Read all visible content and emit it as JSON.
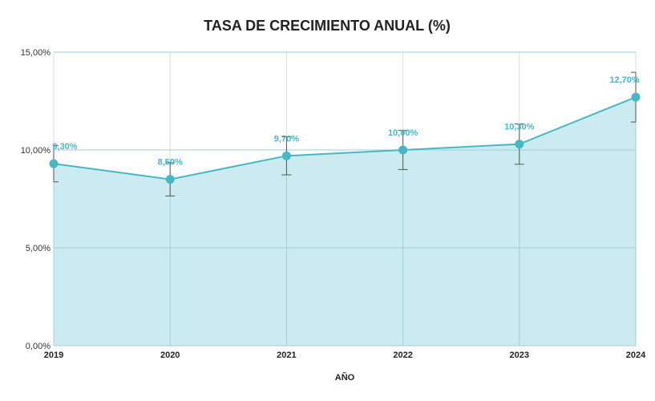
{
  "chart_data": {
    "type": "area",
    "title": "TASA DE CRECIMIENTO ANUAL (%)",
    "xlabel": "AÑO",
    "ylabel": "",
    "categories": [
      "2019",
      "2020",
      "2021",
      "2022",
      "2023",
      "2024"
    ],
    "values": [
      9.3,
      8.5,
      9.7,
      10.0,
      10.3,
      12.7
    ],
    "data_labels": [
      "9,30%",
      "8,50%",
      "9,70%",
      "10,00%",
      "10,30%",
      "12,70%"
    ],
    "error_margin_percent_of_value": 10,
    "ylim": [
      0,
      15
    ],
    "yticks": [
      0,
      5,
      10,
      15
    ],
    "ytick_labels": [
      "0,00%",
      "5,00%",
      "10,00%",
      "15,00%"
    ],
    "grid": true,
    "colors": {
      "line": "#45b8c6",
      "fill": "#c9eaef",
      "error": "#555555"
    }
  }
}
